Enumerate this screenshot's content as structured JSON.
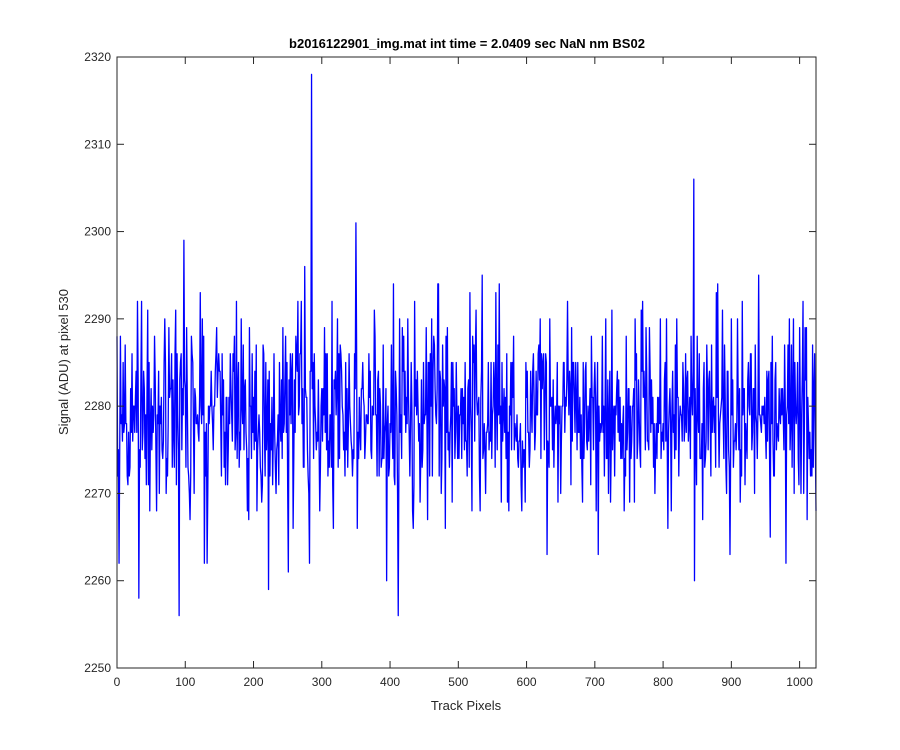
{
  "chart_data": {
    "type": "line",
    "title": "b2016122901_img.mat int time = 2.0409 sec  NaN nm BS02",
    "xlabel": "Track Pixels",
    "ylabel": "Signal (ADU) at pixel 530",
    "xlim": [
      0,
      1024
    ],
    "ylim": [
      2250,
      2320
    ],
    "xticks": [
      0,
      100,
      200,
      300,
      400,
      500,
      600,
      700,
      800,
      900,
      1000
    ],
    "yticks": [
      2250,
      2260,
      2270,
      2280,
      2290,
      2300,
      2310,
      2320
    ],
    "grid": false,
    "legend": "none",
    "series": [
      {
        "color": "#0000ff",
        "random_seed": 530,
        "baseline": 2279,
        "noise_sd": 5.5,
        "n_points": 1024,
        "points": [
          [
            0,
            2288
          ],
          [
            3,
            2262
          ],
          [
            5,
            2288
          ],
          [
            10,
            2277
          ],
          [
            30,
            2292
          ],
          [
            32,
            2258
          ],
          [
            45,
            2291
          ],
          [
            55,
            2288
          ],
          [
            60,
            2278
          ],
          [
            70,
            2290
          ],
          [
            86,
            2291
          ],
          [
            91,
            2256
          ],
          [
            94,
            2286
          ],
          [
            98,
            2299
          ],
          [
            100,
            2282
          ],
          [
            122,
            2293
          ],
          [
            128,
            2262
          ],
          [
            132,
            2262
          ],
          [
            170,
            2286
          ],
          [
            175,
            2292
          ],
          [
            222,
            2259
          ],
          [
            230,
            2286
          ],
          [
            247,
            2288
          ],
          [
            258,
            2266
          ],
          [
            265,
            2292
          ],
          [
            275,
            2296
          ],
          [
            282,
            2262
          ],
          [
            285,
            2318
          ],
          [
            290,
            2280
          ],
          [
            315,
            2292
          ],
          [
            330,
            2280
          ],
          [
            350,
            2301
          ],
          [
            352,
            2266
          ],
          [
            362,
            2280
          ],
          [
            390,
            2287
          ],
          [
            395,
            2260
          ],
          [
            405,
            2294
          ],
          [
            412,
            2256
          ],
          [
            420,
            2288
          ],
          [
            470,
            2294
          ],
          [
            482,
            2288
          ],
          [
            500,
            2280
          ],
          [
            535,
            2295
          ],
          [
            560,
            2294
          ],
          [
            620,
            2290
          ],
          [
            660,
            2292
          ],
          [
            705,
            2263
          ],
          [
            725,
            2291
          ],
          [
            770,
            2292
          ],
          [
            805,
            2290
          ],
          [
            820,
            2290
          ],
          [
            845,
            2306
          ],
          [
            846,
            2260
          ],
          [
            850,
            2288
          ],
          [
            880,
            2294
          ],
          [
            900,
            2290
          ],
          [
            925,
            2285
          ],
          [
            940,
            2295
          ],
          [
            980,
            2262
          ],
          [
            985,
            2290
          ],
          [
            1000,
            2289
          ],
          [
            1008,
            2289
          ],
          [
            1010,
            2289
          ],
          [
            1024,
            2268
          ]
        ]
      }
    ]
  }
}
